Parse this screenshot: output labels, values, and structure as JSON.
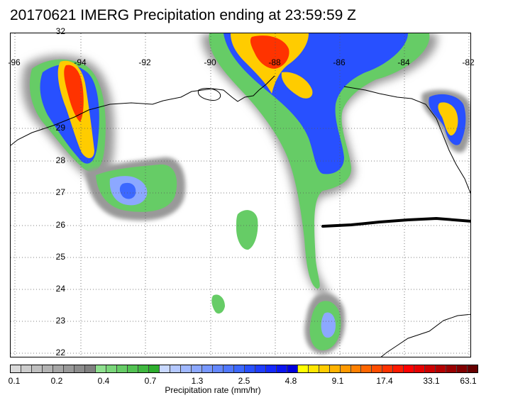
{
  "title": "20170621 IMERG Precipitation ending at 23:59:59 Z",
  "map": {
    "lon_labels": [
      "-96",
      "-94",
      "-92",
      "-90",
      "-88",
      "-86",
      "-84",
      "-82"
    ],
    "lat_labels": [
      "32",
      "29",
      "28",
      "27",
      "26",
      "25",
      "24",
      "23",
      "22"
    ],
    "coastline_color": "#000000",
    "track_color": "#000000"
  },
  "colorbar": {
    "title": "Precipitation rate (mm/hr)",
    "tick_labels": [
      "0.1",
      "0.2",
      "0.4",
      "0.7",
      "1.3",
      "2.5",
      "4.8",
      "9.1",
      "17.4",
      "33.1",
      "63.1"
    ],
    "colors": [
      "#d9d9d9",
      "#cccccc",
      "#bfbfbf",
      "#b3b3b3",
      "#a6a6a6",
      "#999999",
      "#8c8c8c",
      "#808080",
      "#8fe08f",
      "#7ad67a",
      "#66cc66",
      "#52c252",
      "#40b840",
      "#2eae2e",
      "#c8d8ff",
      "#b4c8ff",
      "#a0b8ff",
      "#8ca8ff",
      "#7898ff",
      "#6488ff",
      "#5078ff",
      "#3c68ff",
      "#2850ff",
      "#1e3cff",
      "#1428ff",
      "#0a14f0",
      "#0000dc",
      "#ffff00",
      "#ffe600",
      "#ffcc00",
      "#ffb300",
      "#ff9900",
      "#ff8000",
      "#ff6600",
      "#ff4d00",
      "#ff3300",
      "#ff1a00",
      "#ff0000",
      "#e60000",
      "#cc0000",
      "#b30000",
      "#990000",
      "#800000",
      "#660000"
    ]
  }
}
